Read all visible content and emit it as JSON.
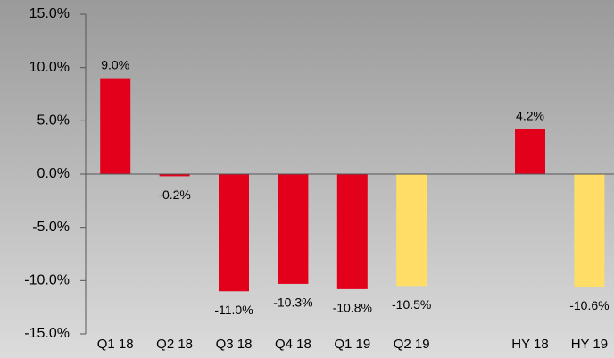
{
  "chart_data": {
    "type": "bar",
    "categories": [
      "Q1 18",
      "Q2 18",
      "Q3 18",
      "Q4 18",
      "Q1 19",
      "Q2 19",
      null,
      "HY 18",
      "HY 19"
    ],
    "values": [
      9.0,
      -0.2,
      -11.0,
      -10.3,
      -10.8,
      -10.5,
      null,
      4.2,
      -10.6
    ],
    "value_labels": [
      "9.0%",
      "-0.2%",
      "-11.0%",
      "-10.3%",
      "-10.8%",
      "-10.5%",
      null,
      "4.2%",
      "-10.6%"
    ],
    "colors": [
      "#e3001b",
      "#e3001b",
      "#e3001b",
      "#e3001b",
      "#e3001b",
      "#ffdd66",
      null,
      "#e3001b",
      "#ffdd66"
    ],
    "ylim": [
      -15,
      15
    ],
    "yticks": [
      {
        "value": -15,
        "label": "-15.0%"
      },
      {
        "value": -10,
        "label": "-10.0%"
      },
      {
        "value": -5,
        "label": "-5.0%"
      },
      {
        "value": 0,
        "label": "0.0%"
      },
      {
        "value": 5,
        "label": "5.0%"
      },
      {
        "value": 10,
        "label": "10.0%"
      },
      {
        "value": 15,
        "label": "15.0%"
      }
    ],
    "grid": false
  }
}
